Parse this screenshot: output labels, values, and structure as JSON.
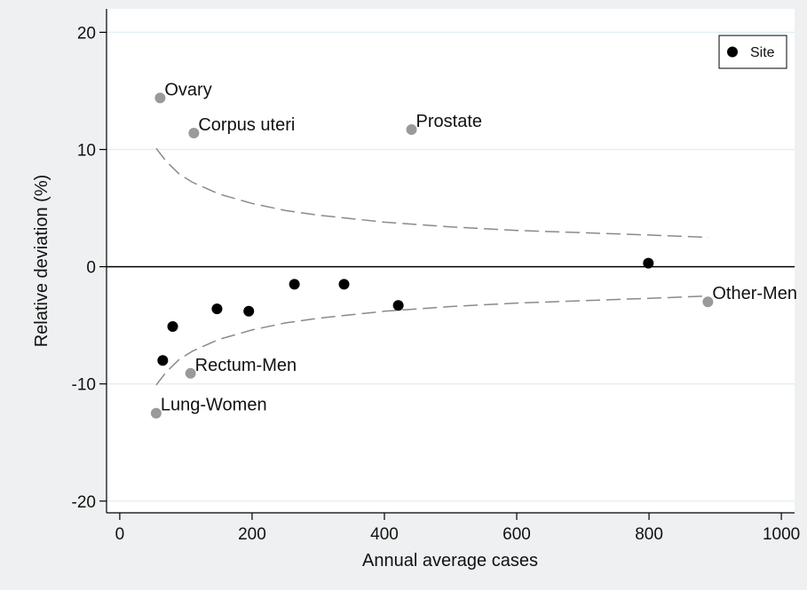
{
  "chart_data": {
    "type": "scatter",
    "title": "",
    "xlabel": "Annual average cases",
    "ylabel": "Relative deviation (%)",
    "xlim": [
      -20,
      1020
    ],
    "ylim": [
      -21,
      22
    ],
    "xticks": [
      0,
      200,
      400,
      600,
      800,
      1000
    ],
    "yticks": [
      -20,
      -10,
      0,
      10,
      20
    ],
    "grid": "horizontal",
    "reference_line_y": 0,
    "legend": {
      "position": "top-right",
      "entries": [
        {
          "label": "Site",
          "color": "#000000"
        }
      ]
    },
    "series": [
      {
        "name": "Site",
        "color": "#000000",
        "points": [
          {
            "x": 65,
            "y": -8.0
          },
          {
            "x": 80,
            "y": -5.1
          },
          {
            "x": 147,
            "y": -3.6
          },
          {
            "x": 195,
            "y": -3.8
          },
          {
            "x": 264,
            "y": -1.5
          },
          {
            "x": 339,
            "y": -1.5
          },
          {
            "x": 421,
            "y": -3.3
          },
          {
            "x": 799,
            "y": 0.3
          }
        ]
      },
      {
        "color": "#9a9a9a",
        "points": [
          {
            "x": 61,
            "y": 14.4,
            "label": "Ovary"
          },
          {
            "x": 112,
            "y": 11.4,
            "label": "Corpus uteri"
          },
          {
            "x": 441,
            "y": 11.7,
            "label": "Prostate"
          },
          {
            "x": 889,
            "y": -3.0,
            "label": "Other-Men"
          },
          {
            "x": 107,
            "y": -9.1,
            "label": "Rectum-Men"
          },
          {
            "x": 55,
            "y": -12.5,
            "label": "Lung-Women"
          }
        ]
      }
    ],
    "control_limits": {
      "style": "dashed",
      "color": "#8a8a8a",
      "x": [
        55,
        70,
        90,
        110,
        150,
        200,
        250,
        300,
        400,
        500,
        600,
        700,
        800,
        890
      ],
      "upper": [
        10.1,
        9.0,
        7.9,
        7.2,
        6.2,
        5.4,
        4.8,
        4.4,
        3.8,
        3.4,
        3.1,
        2.9,
        2.7,
        2.5
      ],
      "lower": [
        -10.1,
        -9.0,
        -7.9,
        -7.2,
        -6.2,
        -5.4,
        -4.8,
        -4.4,
        -3.8,
        -3.4,
        -3.1,
        -2.9,
        -2.7,
        -2.5
      ]
    }
  }
}
